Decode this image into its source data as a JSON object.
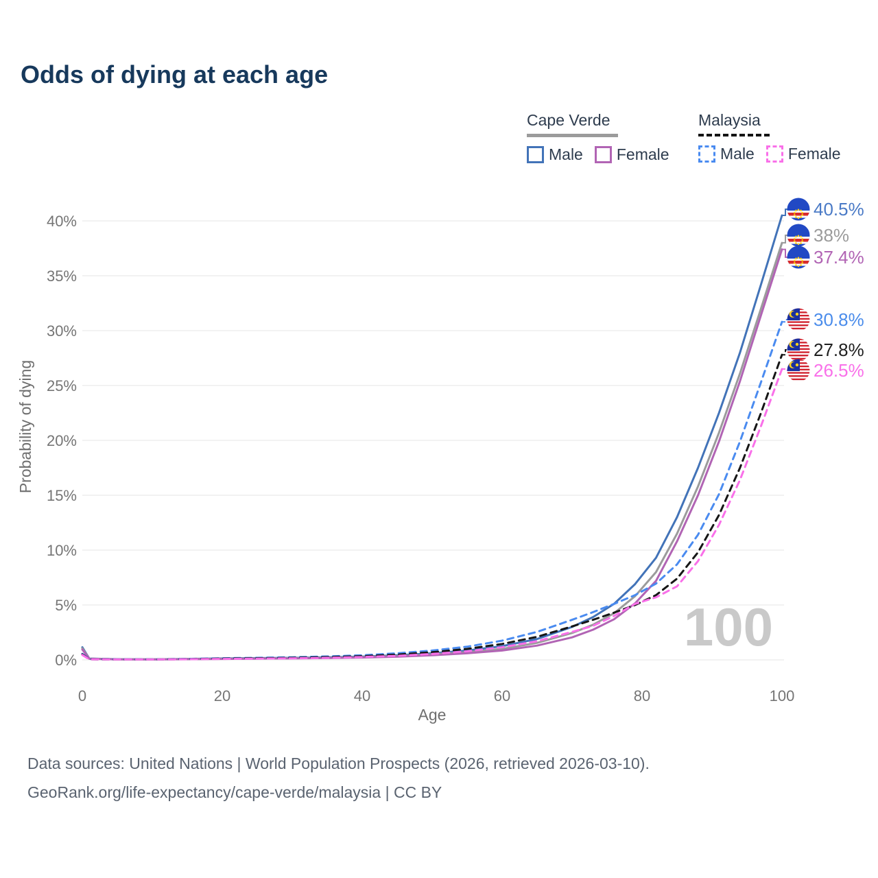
{
  "title": "Odds of dying at each age",
  "legend": {
    "cape_verde": {
      "name": "Cape Verde",
      "male_label": "Male",
      "female_label": "Female"
    },
    "malaysia": {
      "name": "Malaysia",
      "male_label": "Male",
      "female_label": "Female"
    }
  },
  "footer": {
    "line1": "Data sources: United Nations | World Population Prospects (2026, retrieved 2026-03-10).",
    "line2": "GeoRank.org/life-expectancy/cape-verde/malaysia | CC BY"
  },
  "colors": {
    "title": "#17395c",
    "grid": "#ededed",
    "tick_text": "#757575",
    "watermark": "#c9c9c9",
    "cape_verde_male": "#4273b8",
    "cape_verde_both": "#9b9b9b",
    "cape_verde_female": "#b164b4",
    "malaysia_male": "#4a8bf0",
    "malaysia_both": "#161616",
    "malaysia_female": "#f970e9"
  },
  "chart_data": {
    "type": "line",
    "title": "Odds of dying at each age",
    "xlabel": "Age",
    "ylabel": "Probability of dying",
    "xlim": [
      0,
      100
    ],
    "ylim": [
      0,
      40
    ],
    "x_ticks": [
      0,
      20,
      40,
      60,
      80,
      100
    ],
    "y_ticks_percent": [
      0,
      5,
      10,
      15,
      20,
      25,
      30,
      35,
      40
    ],
    "grid": "horizontal",
    "legend_position": "top-right",
    "watermark": "100",
    "ages": [
      0,
      1,
      5,
      10,
      15,
      20,
      25,
      30,
      35,
      40,
      45,
      50,
      55,
      60,
      65,
      70,
      73,
      76,
      79,
      82,
      85,
      88,
      91,
      94,
      97,
      100
    ],
    "series": [
      {
        "name": "Cape Verde Male",
        "country": "Cape Verde",
        "sex": "Male",
        "style": "solid",
        "color": "#4273b8",
        "label_color": "#4a7ac6",
        "flag": "cape-verde",
        "end_label": "40.5%",
        "values": [
          1.15,
          0.12,
          0.06,
          0.05,
          0.09,
          0.13,
          0.16,
          0.19,
          0.23,
          0.3,
          0.42,
          0.6,
          0.85,
          1.25,
          1.9,
          3.0,
          3.9,
          5.1,
          6.9,
          9.3,
          13.0,
          17.5,
          22.5,
          28.0,
          34.2,
          40.5
        ]
      },
      {
        "name": "Cape Verde Both sexes",
        "country": "Cape Verde",
        "sex": "Both",
        "style": "solid",
        "color": "#9b9b9b",
        "label_color": "#9b9b9b",
        "flag": "cape-verde",
        "end_label": "38%",
        "values": [
          1.05,
          0.11,
          0.05,
          0.045,
          0.075,
          0.11,
          0.13,
          0.16,
          0.19,
          0.25,
          0.35,
          0.5,
          0.7,
          1.0,
          1.55,
          2.45,
          3.2,
          4.25,
          5.8,
          8.0,
          11.5,
          15.8,
          20.7,
          26.1,
          32.0,
          38.0
        ]
      },
      {
        "name": "Cape Verde Female",
        "country": "Cape Verde",
        "sex": "Female",
        "style": "solid",
        "color": "#b164b4",
        "label_color": "#b164b4",
        "flag": "cape-verde",
        "end_label": "37.4%",
        "values": [
          0.95,
          0.1,
          0.045,
          0.04,
          0.06,
          0.09,
          0.11,
          0.13,
          0.16,
          0.21,
          0.29,
          0.42,
          0.6,
          0.85,
          1.3,
          2.05,
          2.75,
          3.7,
          5.15,
          7.2,
          10.8,
          15.0,
          19.9,
          25.4,
          31.4,
          37.4
        ]
      },
      {
        "name": "Malaysia Male",
        "country": "Malaysia",
        "sex": "Male",
        "style": "dashed",
        "color": "#4a8bf0",
        "label_color": "#4a8ceb",
        "flag": "malaysia",
        "end_label": "30.8%",
        "values": [
          0.55,
          0.06,
          0.045,
          0.045,
          0.09,
          0.15,
          0.19,
          0.24,
          0.31,
          0.42,
          0.6,
          0.85,
          1.2,
          1.75,
          2.55,
          3.65,
          4.35,
          5.1,
          5.9,
          6.95,
          8.7,
          11.4,
          15.1,
          19.9,
          25.3,
          30.8
        ]
      },
      {
        "name": "Malaysia Both sexes",
        "country": "Malaysia",
        "sex": "Both",
        "style": "dashed",
        "color": "#161616",
        "label_color": "#1f1f1f",
        "flag": "malaysia",
        "end_label": "27.8%",
        "values": [
          0.5,
          0.055,
          0.04,
          0.04,
          0.07,
          0.12,
          0.15,
          0.19,
          0.25,
          0.34,
          0.48,
          0.7,
          1.0,
          1.45,
          2.1,
          3.05,
          3.65,
          4.3,
          5.0,
          5.9,
          7.4,
          9.8,
          13.2,
          17.5,
          22.5,
          27.8
        ]
      },
      {
        "name": "Malaysia Female",
        "country": "Malaysia",
        "sex": "Female",
        "style": "dashed",
        "color": "#f970e9",
        "label_color": "#f970e9",
        "flag": "malaysia",
        "end_label": "26.5%",
        "values": [
          0.45,
          0.05,
          0.035,
          0.035,
          0.055,
          0.09,
          0.115,
          0.145,
          0.19,
          0.26,
          0.37,
          0.54,
          0.78,
          1.15,
          1.7,
          2.55,
          3.1,
          4.0,
          5.1,
          5.7,
          6.7,
          9.0,
          12.3,
          16.4,
          21.3,
          26.5
        ]
      }
    ]
  }
}
